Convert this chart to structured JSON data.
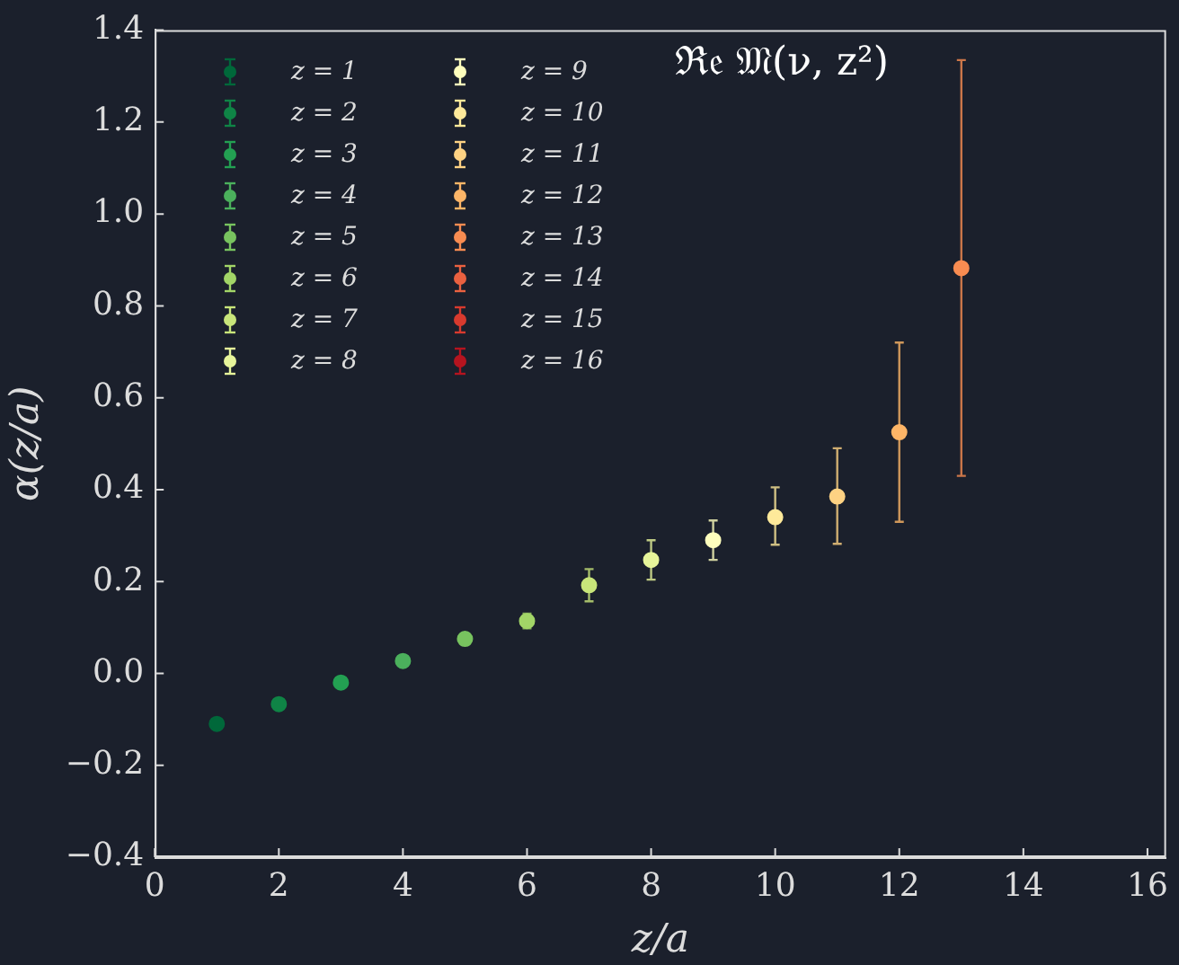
{
  "chart_data": {
    "type": "scatter",
    "title": "ℜ𝔢 𝔐(ν, z²)",
    "xlabel": "z/a",
    "ylabel": "α(z/a)",
    "xlim": [
      0,
      16.3
    ],
    "xticks": [
      0,
      2,
      4,
      6,
      8,
      10,
      12,
      14,
      16
    ],
    "ylim": [
      -0.4,
      1.4
    ],
    "yticks": [
      {
        "value": -0.4,
        "label": "−0.4"
      },
      {
        "value": -0.2,
        "label": "−0.2"
      },
      {
        "value": 0,
        "label": "0.0"
      },
      {
        "value": 0.2,
        "label": "0.2"
      },
      {
        "value": 0.4,
        "label": "0.4"
      },
      {
        "value": 0.6,
        "label": "0.6"
      },
      {
        "value": 0.8,
        "label": "0.8"
      },
      {
        "value": 1.0,
        "label": "1.0"
      },
      {
        "value": 1.2,
        "label": "1.2"
      },
      {
        "value": 1.4,
        "label": "1.4"
      }
    ],
    "grid": false,
    "legend": "top left",
    "marker": "circle",
    "series": [
      {
        "name": "z = 1",
        "color": "#00683a",
        "x": [
          1
        ],
        "values": [
          -0.11
        ]
      },
      {
        "name": "z = 2",
        "color": "#0f8446",
        "x": [
          2
        ],
        "values": [
          -0.067
        ]
      },
      {
        "name": "z = 3",
        "color": "#23a052",
        "x": [
          3
        ],
        "values": [
          -0.02
        ]
      },
      {
        "name": "z = 4",
        "color": "#4bb05c",
        "x": [
          4
        ],
        "values": [
          0.027
        ]
      },
      {
        "name": "z = 5",
        "color": "#78c35f",
        "x": [
          5
        ],
        "values": [
          0.075
        ],
        "errors": [
          0.012
        ]
      },
      {
        "name": "z = 6",
        "color": "#a2d567",
        "x": [
          6
        ],
        "values": [
          0.114
        ],
        "errors": [
          0.016
        ]
      },
      {
        "name": "z = 7",
        "color": "#c8e57a",
        "x": [
          7
        ],
        "values": [
          0.192
        ],
        "errors": [
          0.035
        ]
      },
      {
        "name": "z = 8",
        "color": "#e6f49a",
        "x": [
          8
        ],
        "values": [
          0.247
        ],
        "errors": [
          0.043
        ]
      },
      {
        "name": "z = 9",
        "color": "#fefebd",
        "x": [
          9
        ],
        "values": [
          0.29
        ],
        "errors": [
          0.043
        ]
      },
      {
        "name": "z = 10",
        "color": "#fee99a",
        "x": [
          10
        ],
        "values": [
          0.34
        ],
        "errors": [
          [
            0.28,
            0.405
          ]
        ]
      },
      {
        "name": "z = 11",
        "color": "#fed283",
        "x": [
          11
        ],
        "values": [
          0.385
        ],
        "errors": [
          [
            0.282,
            0.49
          ]
        ]
      },
      {
        "name": "z = 12",
        "color": "#fdb567",
        "x": [
          12
        ],
        "values": [
          0.525
        ],
        "errors": [
          [
            0.33,
            0.72
          ]
        ]
      },
      {
        "name": "z = 13",
        "color": "#f88c51",
        "x": [
          13
        ],
        "values": [
          0.882
        ],
        "errors": [
          [
            0.43,
            1.335
          ]
        ]
      },
      {
        "name": "z = 14",
        "color": "#ea6140"
      },
      {
        "name": "z = 15",
        "color": "#d83a2e"
      },
      {
        "name": "z = 16",
        "color": "#b5141f"
      }
    ]
  }
}
